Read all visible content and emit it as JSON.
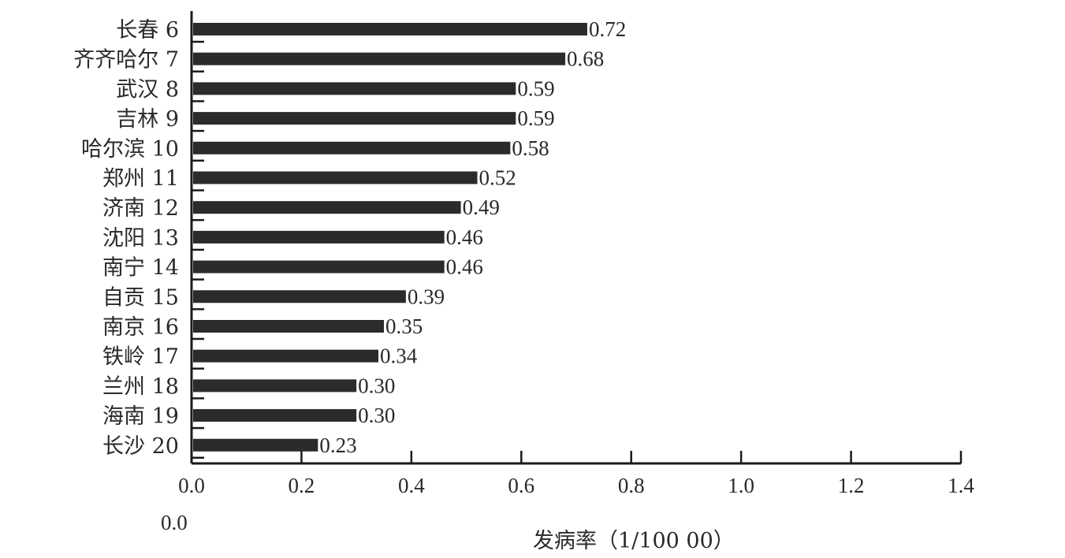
{
  "chart_data": {
    "type": "bar",
    "orientation": "horizontal",
    "categories": [
      "长春 6",
      "齐齐哈尔 7",
      "武汉 8",
      "吉林 9",
      "哈尔滨 10",
      "郑州 11",
      "济南 12",
      "沈阳 13",
      "南宁 14",
      "自贡 15",
      "南京 16",
      "铁岭 17",
      "兰州 18",
      "海南 19",
      "长沙 20"
    ],
    "values": [
      0.72,
      0.68,
      0.59,
      0.59,
      0.58,
      0.52,
      0.49,
      0.46,
      0.46,
      0.39,
      0.35,
      0.34,
      0.3,
      0.3,
      0.23
    ],
    "value_labels": [
      "0.72",
      "0.68",
      "0.59",
      "0.59",
      "0.58",
      "0.52",
      "0.49",
      "0.46",
      "0.46",
      "0.39",
      "0.35",
      "0.34",
      "0.30",
      "0.30",
      "0.23"
    ],
    "xticks": [
      "0.0",
      "0.2",
      "0.4",
      "0.6",
      "0.8",
      "1.0",
      "1.2",
      "1.4"
    ],
    "xlim": [
      0,
      1.4
    ],
    "xlabel": "发病率（1/100 00）",
    "extra_label": "0.0",
    "bar_color": "#2b2b2b",
    "grid": false,
    "legend": "none"
  }
}
